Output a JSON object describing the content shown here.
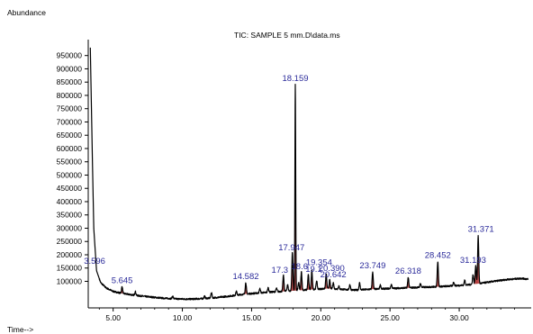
{
  "chart_data": {
    "type": "line",
    "title": "TIC: SAMPLE 5  mm.D\\data.ms",
    "ylabel": "Abundance",
    "xlabel": "Time-->",
    "xlim": [
      3.2,
      35.2
    ],
    "ylim": [
      0,
      1010000
    ],
    "x_ticks": [
      5,
      10,
      15,
      20,
      25,
      30
    ],
    "x_tick_labels": [
      "5.00",
      "10.00",
      "15.00",
      "20.00",
      "25.00",
      "30.00"
    ],
    "y_ticks": [
      100000,
      150000,
      200000,
      250000,
      300000,
      350000,
      400000,
      450000,
      500000,
      550000,
      600000,
      650000,
      700000,
      750000,
      800000,
      850000,
      900000,
      950000
    ],
    "y_tick_labels": [
      "100000",
      "150000",
      "200000",
      "250000",
      "300000",
      "350000",
      "400000",
      "450000",
      "500000",
      "550000",
      "600000",
      "650000",
      "700000",
      "750000",
      "800000",
      "850000",
      "900000",
      "950000"
    ],
    "line_color": "#000000",
    "peak_fill_color": "#b03030",
    "label_color": "#2a2a9a",
    "baseline": [
      [
        3.35,
        980000
      ],
      [
        3.5,
        560000
      ],
      [
        3.6,
        300000
      ],
      [
        3.8,
        140000
      ],
      [
        4.1,
        95000
      ],
      [
        4.5,
        75000
      ],
      [
        5.0,
        62000
      ],
      [
        5.6,
        55000
      ],
      [
        6.5,
        48000
      ],
      [
        7.5,
        42000
      ],
      [
        8.5,
        37000
      ],
      [
        9.5,
        34000
      ],
      [
        10.5,
        33000
      ],
      [
        11.5,
        35000
      ],
      [
        12.5,
        39000
      ],
      [
        13.5,
        45000
      ],
      [
        14.5,
        52000
      ],
      [
        15.5,
        56000
      ],
      [
        16.5,
        60000
      ],
      [
        17.5,
        63000
      ],
      [
        18.5,
        66000
      ],
      [
        19.5,
        70000
      ],
      [
        20.5,
        73000
      ],
      [
        21.5,
        70000
      ],
      [
        22.5,
        67000
      ],
      [
        23.5,
        70000
      ],
      [
        24.5,
        72000
      ],
      [
        25.5,
        74000
      ],
      [
        26.5,
        76000
      ],
      [
        27.5,
        78000
      ],
      [
        28.5,
        80000
      ],
      [
        29.5,
        83000
      ],
      [
        30.5,
        86000
      ],
      [
        31.5,
        92000
      ],
      [
        32.5,
        100000
      ],
      [
        33.5,
        107000
      ],
      [
        34.5,
        111000
      ],
      [
        35.0,
        108000
      ]
    ],
    "peaks": [
      {
        "rt": 3.596,
        "abundance": 160000,
        "label": "3.596"
      },
      {
        "rt": 5.645,
        "abundance": 80000,
        "label": "5.645"
      },
      {
        "rt": 14.582,
        "abundance": 95000,
        "label": "14.582"
      },
      {
        "rt": 17.3,
        "abundance": 122000,
        "label": "17.3"
      },
      {
        "rt": 17.947,
        "abundance": 207000,
        "label": "17.947"
      },
      {
        "rt": 18.159,
        "abundance": 840000,
        "label": "18.159"
      },
      {
        "rt": 18.6,
        "abundance": 135000,
        "label": "18.6"
      },
      {
        "rt": 19.1,
        "abundance": 125000,
        "label": "19.1"
      },
      {
        "rt": 19.354,
        "abundance": 140000,
        "label": "19.354"
      },
      {
        "rt": 20.39,
        "abundance": 128000,
        "label": "20.390"
      },
      {
        "rt": 20.642,
        "abundance": 105000,
        "label": "20.642"
      },
      {
        "rt": 23.749,
        "abundance": 135000,
        "label": "23.749"
      },
      {
        "rt": 26.318,
        "abundance": 115000,
        "label": "26.318"
      },
      {
        "rt": 28.452,
        "abundance": 175000,
        "label": "28.452"
      },
      {
        "rt": 31.193,
        "abundance": 160000,
        "label": "31.193"
      },
      {
        "rt": 31.371,
        "abundance": 270000,
        "label": "31.371"
      }
    ],
    "minor_peaks": [
      {
        "rt": 6.6,
        "abundance": 62000
      },
      {
        "rt": 9.3,
        "abundance": 44000
      },
      {
        "rt": 11.6,
        "abundance": 44000
      },
      {
        "rt": 12.1,
        "abundance": 58000
      },
      {
        "rt": 13.9,
        "abundance": 62000
      },
      {
        "rt": 15.6,
        "abundance": 72000
      },
      {
        "rt": 16.2,
        "abundance": 76000
      },
      {
        "rt": 16.8,
        "abundance": 74000
      },
      {
        "rt": 17.6,
        "abundance": 88000
      },
      {
        "rt": 18.4,
        "abundance": 95000
      },
      {
        "rt": 19.7,
        "abundance": 102000
      },
      {
        "rt": 20.9,
        "abundance": 95000
      },
      {
        "rt": 21.3,
        "abundance": 82000
      },
      {
        "rt": 22.1,
        "abundance": 88000
      },
      {
        "rt": 22.8,
        "abundance": 94000
      },
      {
        "rt": 24.3,
        "abundance": 86000
      },
      {
        "rt": 25.1,
        "abundance": 88000
      },
      {
        "rt": 27.2,
        "abundance": 92000
      },
      {
        "rt": 29.6,
        "abundance": 98000
      },
      {
        "rt": 30.4,
        "abundance": 104000
      },
      {
        "rt": 31.0,
        "abundance": 125000
      }
    ]
  }
}
